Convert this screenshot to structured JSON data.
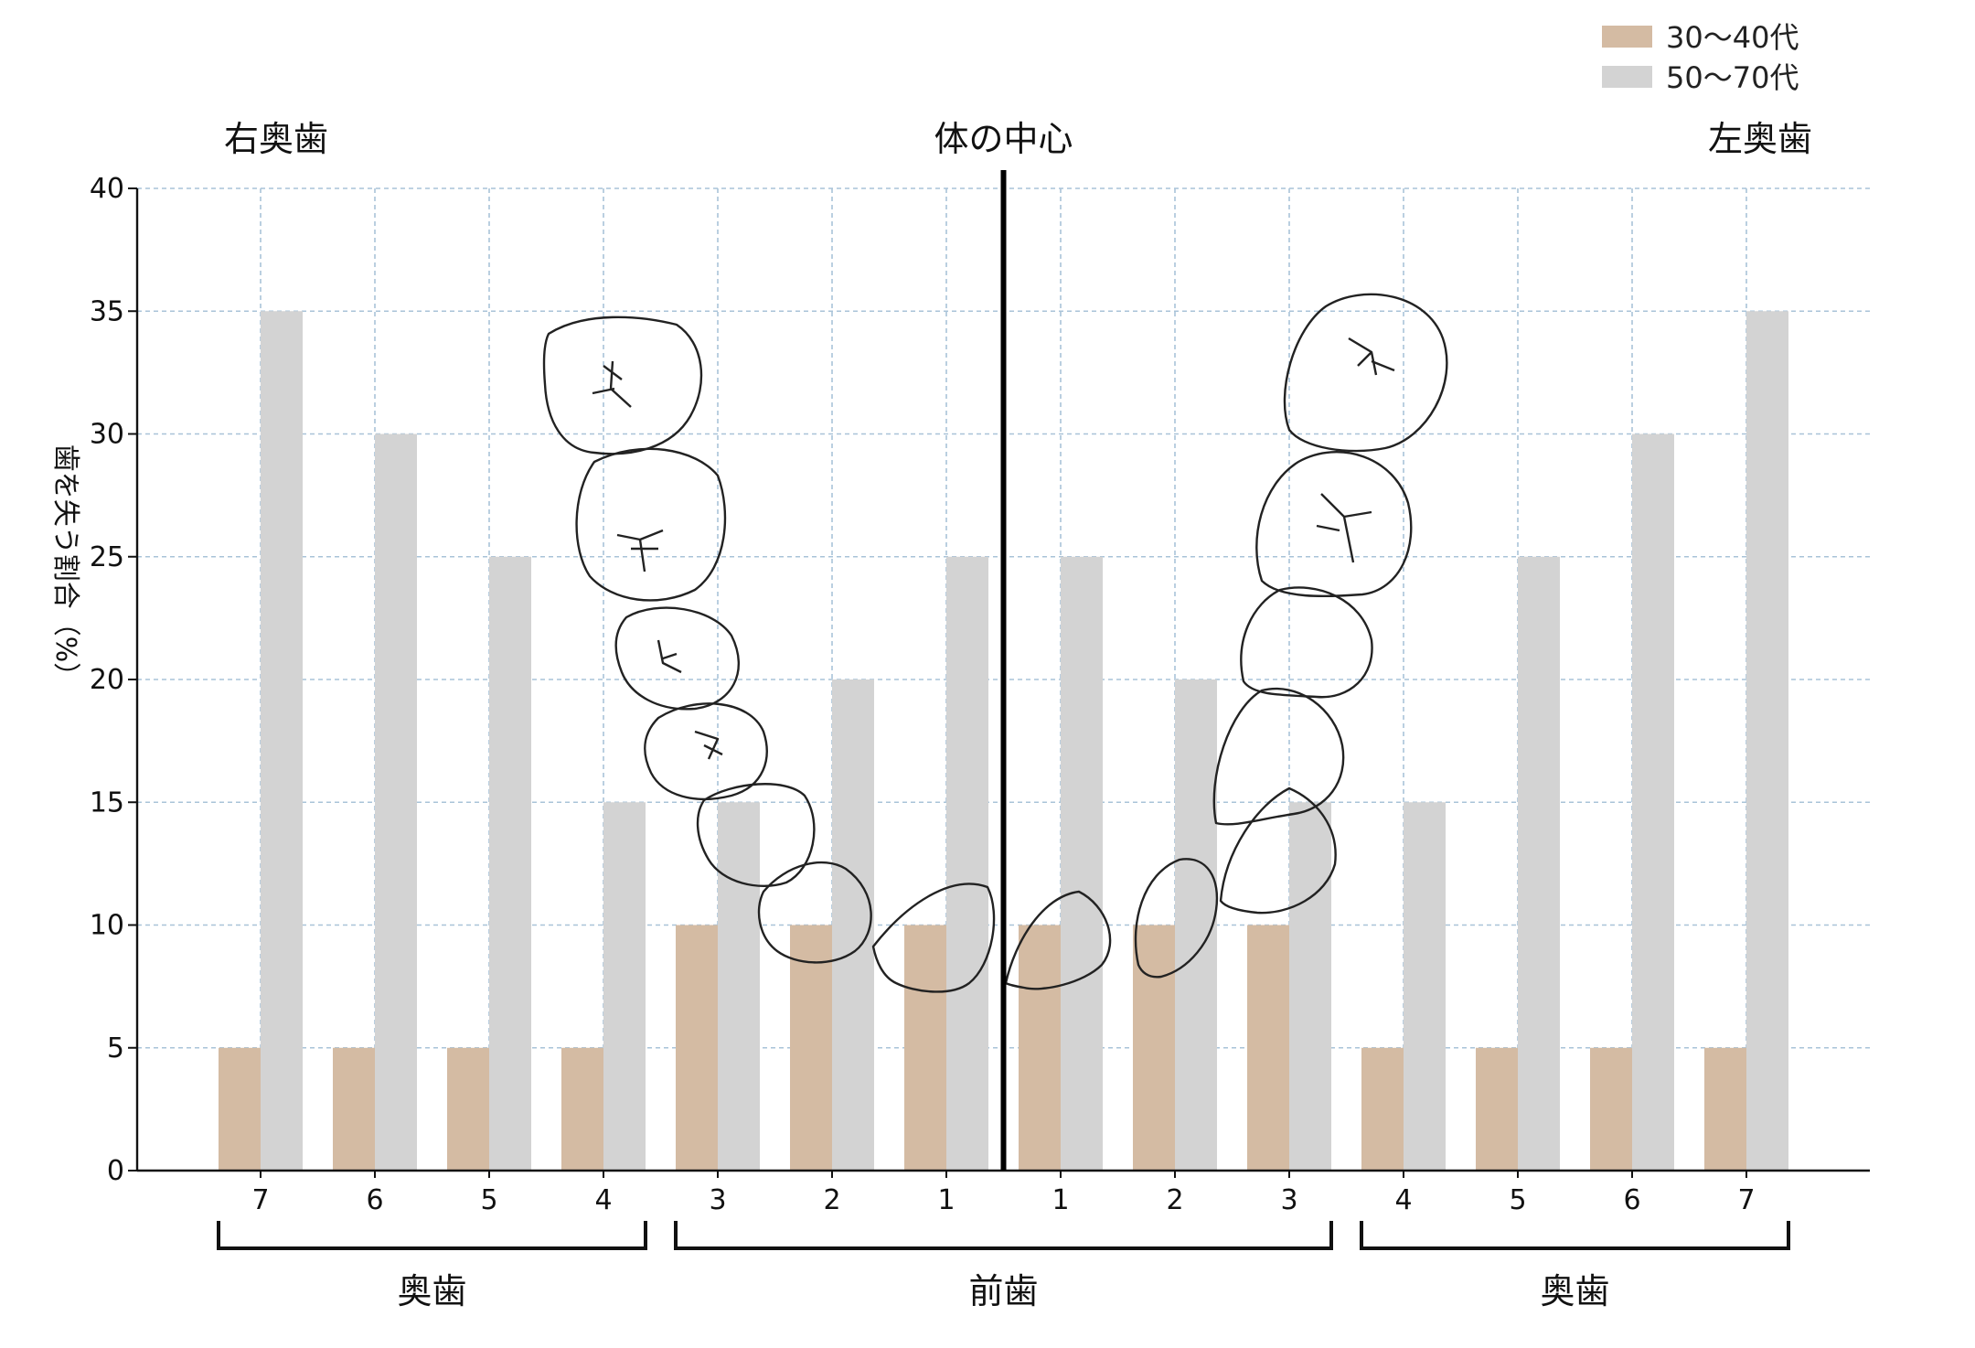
{
  "chart_data": {
    "type": "bar",
    "ylabel": "歯を失う割合（%）",
    "ylim": [
      0,
      40
    ],
    "yticks": [
      0,
      5,
      10,
      15,
      20,
      25,
      30,
      35,
      40
    ],
    "categories": [
      "7",
      "6",
      "5",
      "4",
      "3",
      "2",
      "1",
      "1",
      "2",
      "3",
      "4",
      "5",
      "6",
      "7"
    ],
    "series": [
      {
        "name": "30～40代",
        "color": "#d4bba3",
        "values": [
          5,
          5,
          5,
          5,
          10,
          10,
          10,
          10,
          10,
          10,
          5,
          5,
          5,
          5
        ]
      },
      {
        "name": "50～70代",
        "color": "#d3d3d3",
        "values": [
          35,
          30,
          25,
          15,
          15,
          20,
          25,
          25,
          20,
          15,
          15,
          25,
          30,
          35
        ]
      }
    ],
    "grid": true,
    "legend_position": "top-right",
    "top_labels": {
      "left": "右奥歯",
      "center": "体の中心",
      "right": "左奥歯"
    },
    "group_labels": [
      "奥歯",
      "前歯",
      "奥歯"
    ]
  }
}
